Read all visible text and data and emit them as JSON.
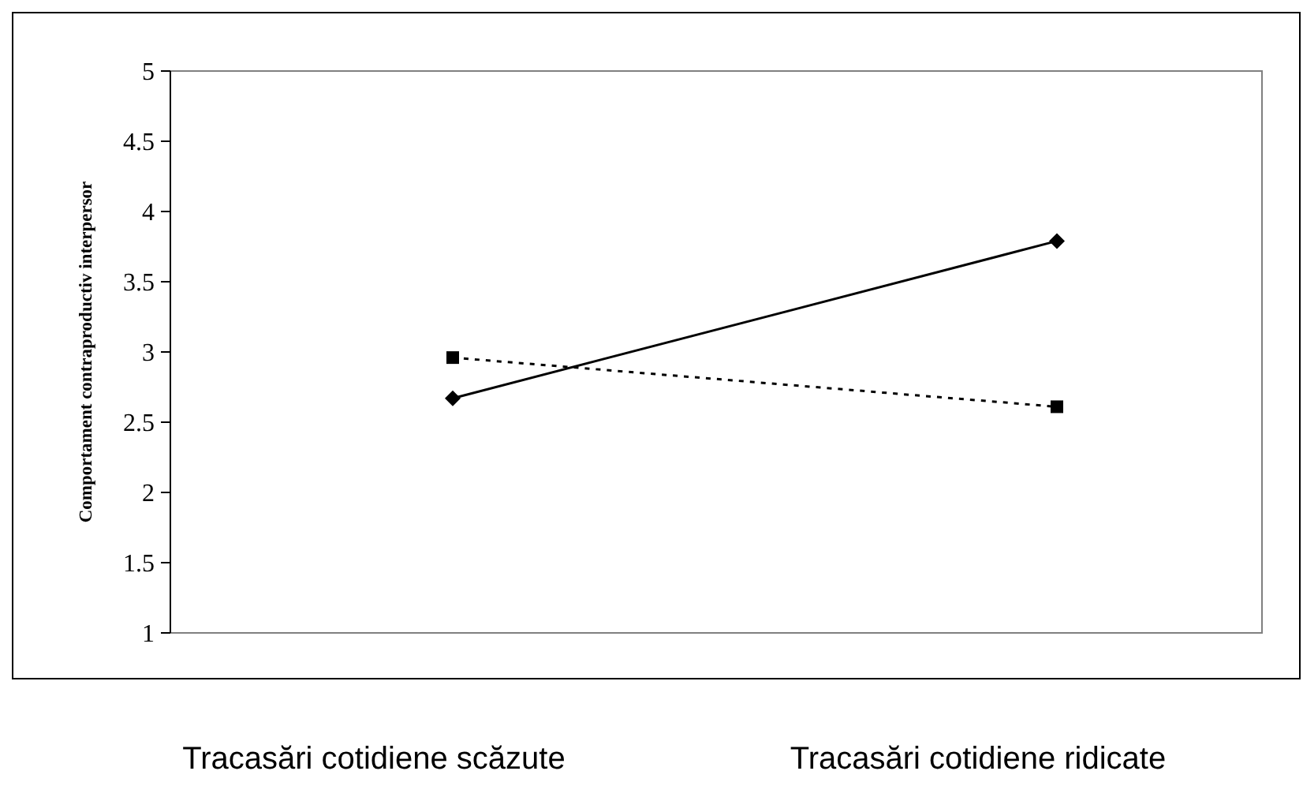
{
  "chart_data": {
    "type": "line",
    "ylabel": "Comportament contraproductiv interpersor",
    "categories": [
      "Tracasări cotidiene scăzute",
      "Tracasări cotidiene ridicate"
    ],
    "series": [
      {
        "color": "#000000",
        "values": [
          2.67,
          3.79
        ],
        "marker": "diamond",
        "line_style": "solid"
      },
      {
        "color": "#000000",
        "values": [
          2.96,
          2.61
        ],
        "marker": "square",
        "line_style": "dotted"
      }
    ],
    "ylim": [
      1,
      5
    ],
    "yticks": [
      1,
      1.5,
      2,
      2.5,
      3,
      3.5,
      4,
      4.5,
      5
    ],
    "grid": false
  }
}
